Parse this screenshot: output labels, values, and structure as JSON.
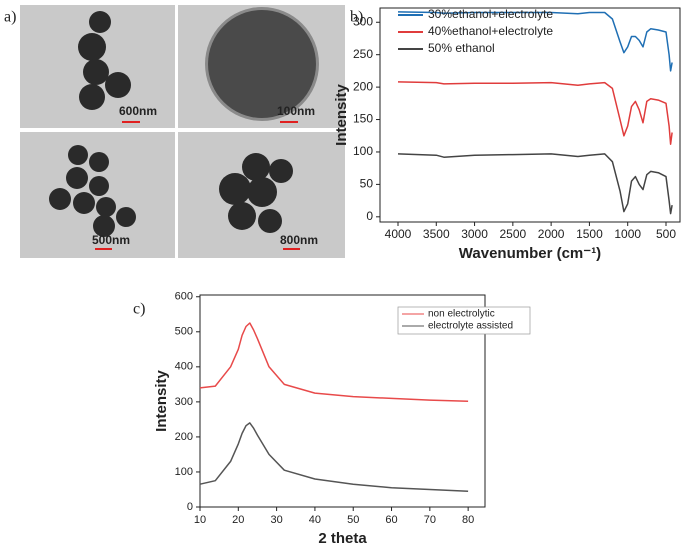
{
  "panel_a": {
    "label": "a)",
    "scale_bars": [
      "600nm",
      "100nm",
      "500nm",
      "800nm"
    ]
  },
  "chart_data": [
    {
      "type": "line",
      "panel_label": "b)",
      "x_label": "Wavenumber (cm⁻¹)",
      "y_label": "Intensity",
      "x": [
        4000,
        3500,
        3400,
        3000,
        2500,
        2000,
        1650,
        1500,
        1300,
        1200,
        1100,
        1050,
        1000,
        950,
        900,
        850,
        800,
        750,
        700,
        600,
        500,
        460,
        440,
        420
      ],
      "series": [
        {
          "name": "30%ethanol+electrolyte",
          "color": "#1f6fb4",
          "values": [
            316,
            315,
            314,
            315,
            315,
            315,
            313,
            315,
            315,
            305,
            270,
            253,
            262,
            278,
            278,
            272,
            262,
            285,
            290,
            288,
            285,
            250,
            225,
            238
          ]
        },
        {
          "name": "40%ethanol+electrolyte",
          "color": "#e03c3c",
          "values": [
            208,
            207,
            205,
            206,
            206,
            207,
            203,
            205,
            207,
            198,
            150,
            125,
            140,
            170,
            178,
            165,
            145,
            178,
            182,
            180,
            175,
            140,
            112,
            130
          ]
        },
        {
          "name": "50% ethanol",
          "color": "#444444",
          "values": [
            97,
            95,
            92,
            95,
            96,
            97,
            93,
            95,
            97,
            85,
            40,
            8,
            20,
            55,
            62,
            50,
            42,
            65,
            70,
            68,
            62,
            25,
            5,
            18
          ]
        }
      ],
      "xlim": [
        4235,
        317
      ],
      "ylim": [
        -8,
        322
      ],
      "xticks": [
        4000,
        3500,
        3000,
        2500,
        2000,
        1500,
        1000,
        500
      ],
      "yticks": [
        0,
        50,
        100,
        150,
        200,
        250,
        300
      ],
      "legend": "upper left"
    },
    {
      "type": "line",
      "panel_label": "c)",
      "x_label": "2 theta",
      "y_label": "Intensity",
      "x": [
        10,
        14,
        18,
        20,
        21,
        22,
        23,
        24,
        25,
        28,
        32,
        40,
        50,
        60,
        70,
        80
      ],
      "series": [
        {
          "name": "non electrolytic",
          "color": "#e84a4a",
          "values": [
            340,
            345,
            400,
            450,
            490,
            515,
            525,
            505,
            480,
            400,
            350,
            325,
            315,
            310,
            305,
            302
          ]
        },
        {
          "name": "electrolyte assisted",
          "color": "#555555",
          "values": [
            65,
            75,
            130,
            180,
            210,
            232,
            240,
            225,
            205,
            150,
            105,
            80,
            65,
            55,
            50,
            45
          ]
        }
      ],
      "xlim": [
        10,
        84.4
      ],
      "ylim": [
        0,
        605
      ],
      "xticks": [
        10,
        20,
        30,
        40,
        50,
        60,
        70,
        80
      ],
      "yticks": [
        0,
        100,
        200,
        300,
        400,
        500,
        600
      ],
      "legend": "upper right"
    }
  ]
}
